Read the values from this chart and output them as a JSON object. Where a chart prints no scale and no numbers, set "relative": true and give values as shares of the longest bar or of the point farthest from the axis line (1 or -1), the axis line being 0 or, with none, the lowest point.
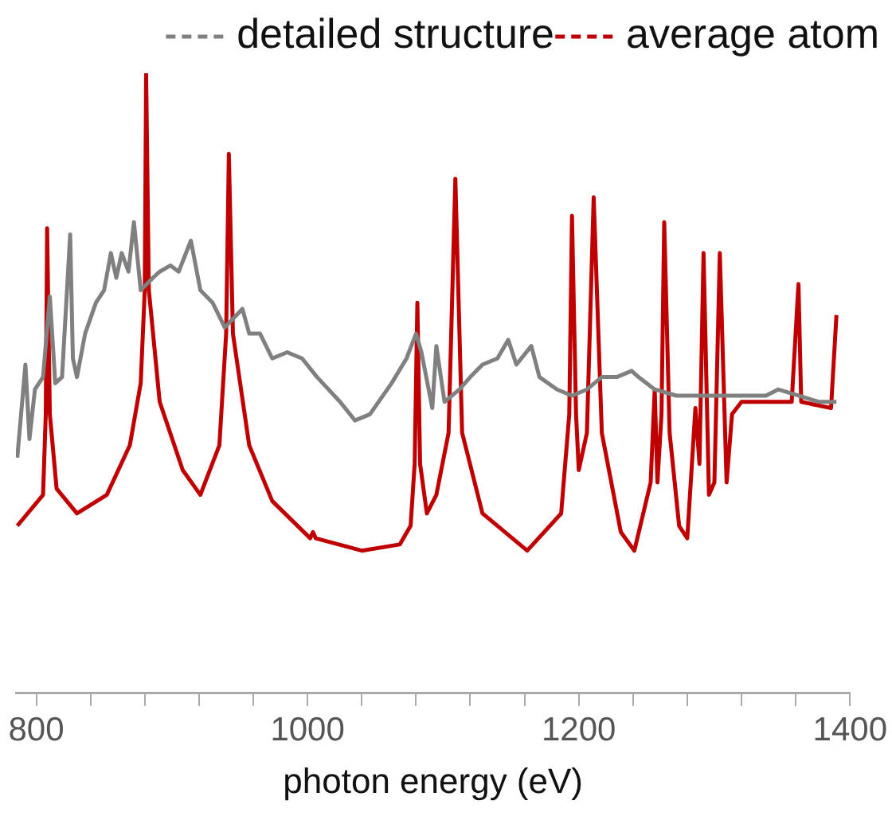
{
  "chart_data": {
    "type": "line",
    "xlabel": "photon energy (eV)",
    "relative": true,
    "legend": "top right",
    "xlim": [
      785,
      1400
    ],
    "xticks": [
      800,
      {
        "value": 840,
        "label": null
      },
      {
        "value": 880,
        "label": null
      },
      {
        "value": 920,
        "label": null
      },
      {
        "value": 960,
        "label": null
      },
      1000,
      {
        "value": 1040,
        "label": null
      },
      {
        "value": 1080,
        "label": null
      },
      {
        "value": 1120,
        "label": null
      },
      {
        "value": 1160,
        "label": null
      },
      1200,
      {
        "value": 1240,
        "label": null
      },
      {
        "value": 1280,
        "label": null
      },
      {
        "value": 1320,
        "label": null
      },
      {
        "value": 1360,
        "label": null
      },
      1400
    ],
    "series": [
      {
        "name": "detailed structure",
        "color": "#808080",
        "x": [
          786,
          792,
          795,
          799,
          805,
          810,
          814,
          819,
          825,
          827,
          830,
          836,
          844,
          850,
          855,
          859,
          863,
          868,
          872,
          877,
          886,
          891,
          899,
          905,
          914,
          921,
          930,
          939,
          952,
          957,
          965,
          974,
          985,
          996,
          1007,
          1024,
          1035,
          1046,
          1062,
          1073,
          1080,
          1084,
          1092,
          1095,
          1101,
          1112,
          1120,
          1129,
          1140,
          1148,
          1154,
          1165,
          1171,
          1184,
          1195,
          1206,
          1217,
          1228,
          1239,
          1244,
          1256,
          1272,
          1294,
          1316,
          1338,
          1347,
          1362,
          1377,
          1390
        ],
        "values": [
          0.38,
          0.53,
          0.41,
          0.49,
          0.51,
          0.64,
          0.5,
          0.51,
          0.74,
          0.54,
          0.51,
          0.58,
          0.63,
          0.65,
          0.71,
          0.67,
          0.71,
          0.68,
          0.76,
          0.65,
          0.67,
          0.68,
          0.69,
          0.68,
          0.73,
          0.65,
          0.63,
          0.59,
          0.62,
          0.58,
          0.58,
          0.54,
          0.55,
          0.54,
          0.51,
          0.47,
          0.44,
          0.45,
          0.5,
          0.54,
          0.58,
          0.55,
          0.46,
          0.56,
          0.47,
          0.49,
          0.51,
          0.53,
          0.54,
          0.57,
          0.53,
          0.56,
          0.51,
          0.49,
          0.48,
          0.49,
          0.51,
          0.51,
          0.52,
          0.51,
          0.49,
          0.48,
          0.48,
          0.48,
          0.48,
          0.49,
          0.48,
          0.47,
          0.47
        ]
      },
      {
        "name": "average atom",
        "color": "#c00000",
        "x": [
          786,
          805,
          807,
          808,
          810,
          815,
          830,
          852,
          869,
          877,
          880,
          881,
          883,
          891,
          908,
          921,
          935,
          940,
          942,
          945,
          957,
          974,
          1002,
          1004,
          1006,
          1040,
          1068,
          1076,
          1079,
          1081,
          1083,
          1088,
          1095,
          1104,
          1109,
          1114,
          1129,
          1162,
          1187,
          1193,
          1195,
          1198,
          1200,
          1206,
          1211,
          1217,
          1231,
          1241,
          1253,
          1256,
          1258,
          1261,
          1263,
          1267,
          1274,
          1280,
          1286,
          1289,
          1292,
          1296,
          1300,
          1304,
          1309,
          1313,
          1320,
          1357,
          1362,
          1364,
          1386,
          1390
        ],
        "values": [
          0.27,
          0.32,
          0.45,
          0.75,
          0.45,
          0.33,
          0.29,
          0.32,
          0.4,
          0.5,
          0.65,
          1,
          0.65,
          0.47,
          0.36,
          0.32,
          0.4,
          0.58,
          0.87,
          0.58,
          0.4,
          0.31,
          0.25,
          0.26,
          0.25,
          0.23,
          0.24,
          0.27,
          0.37,
          0.63,
          0.37,
          0.29,
          0.32,
          0.42,
          0.83,
          0.42,
          0.29,
          0.23,
          0.29,
          0.45,
          0.77,
          0.45,
          0.36,
          0.42,
          0.8,
          0.42,
          0.26,
          0.23,
          0.34,
          0.49,
          0.34,
          0.45,
          0.76,
          0.42,
          0.27,
          0.25,
          0.46,
          0.37,
          0.71,
          0.32,
          0.34,
          0.71,
          0.34,
          0.45,
          0.47,
          0.47,
          0.66,
          0.47,
          0.46,
          0.61
        ]
      }
    ]
  }
}
